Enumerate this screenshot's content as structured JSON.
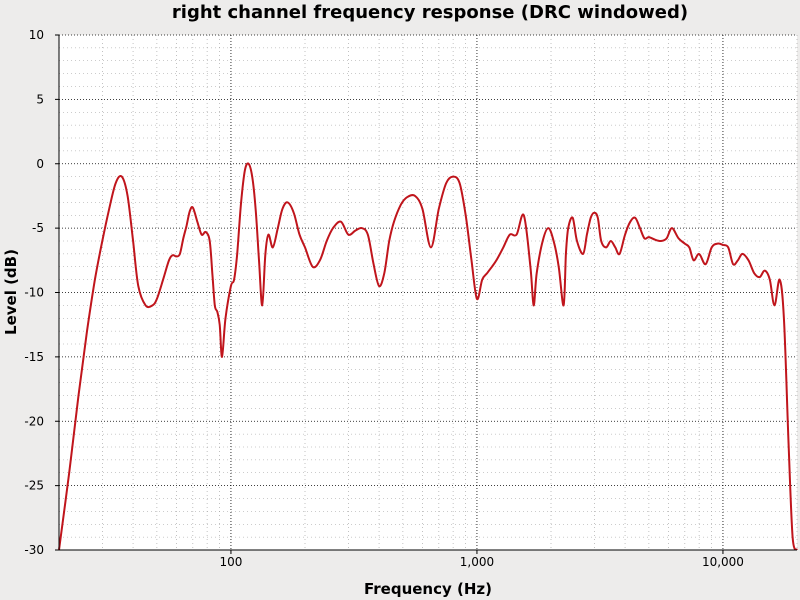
{
  "chart_data": {
    "type": "line",
    "title": "right channel frequency response (DRC windowed)",
    "xlabel": "Frequency (Hz)",
    "ylabel": "Level (dB)",
    "xscale": "log",
    "xlim": [
      20,
      20000
    ],
    "ylim": [
      -30,
      10
    ],
    "grid": true,
    "x_tick_labels": [
      {
        "value": 100,
        "label": "100"
      },
      {
        "value": 1000,
        "label": "1,000"
      },
      {
        "value": 10000,
        "label": "10,000"
      }
    ],
    "y_ticks": [
      10,
      5,
      0,
      -5,
      -10,
      -15,
      -20,
      -25,
      -30
    ],
    "series": [
      {
        "color": "#c0151c",
        "x": [
          20,
          22,
          24,
          26,
          28,
          30,
          32,
          34,
          36,
          38,
          40,
          42,
          45,
          48,
          50,
          53,
          56,
          58,
          60,
          62,
          64,
          66,
          68,
          70,
          73,
          76,
          79,
          82,
          84,
          86,
          88,
          90,
          92,
          95,
          100,
          103,
          106,
          110,
          114,
          118,
          122,
          126,
          130,
          134,
          138,
          142,
          148,
          155,
          162,
          170,
          180,
          190,
          200,
          215,
          230,
          245,
          260,
          280,
          300,
          320,
          340,
          360,
          380,
          400,
          420,
          440,
          460,
          490,
          520,
          560,
          600,
          650,
          700,
          750,
          800,
          850,
          900,
          950,
          1000,
          1050,
          1100,
          1150,
          1200,
          1280,
          1360,
          1450,
          1550,
          1650,
          1700,
          1750,
          1850,
          1950,
          2050,
          2150,
          2250,
          2300,
          2350,
          2450,
          2550,
          2700,
          2800,
          2900,
          3000,
          3100,
          3200,
          3350,
          3500,
          3650,
          3800,
          4000,
          4200,
          4400,
          4600,
          4800,
          5000,
          5300,
          5600,
          5900,
          6200,
          6600,
          7000,
          7300,
          7600,
          8000,
          8500,
          9000,
          9500,
          10000,
          10500,
          11000,
          11500,
          12000,
          12700,
          13400,
          14100,
          14800,
          15500,
          16200,
          17000,
          17700,
          18500,
          19200,
          20000
        ],
        "y": [
          -30,
          -24,
          -18,
          -13,
          -9,
          -6,
          -3.5,
          -1.5,
          -1,
          -2.5,
          -6,
          -9.5,
          -11,
          -11,
          -10.5,
          -9,
          -7.5,
          -7.1,
          -7.2,
          -7,
          -5.8,
          -4.8,
          -3.7,
          -3.4,
          -4.5,
          -5.5,
          -5.3,
          -6,
          -8.5,
          -11,
          -11.5,
          -12.5,
          -15,
          -12,
          -9.5,
          -9,
          -7,
          -3,
          -0.5,
          0,
          -1,
          -3.5,
          -7.5,
          -11,
          -7,
          -5.5,
          -6.5,
          -5,
          -3.5,
          -3,
          -3.8,
          -5.5,
          -6.5,
          -8,
          -7.5,
          -6,
          -5,
          -4.5,
          -5.5,
          -5.2,
          -5,
          -5.5,
          -7.8,
          -9.5,
          -8.5,
          -6,
          -4.5,
          -3.2,
          -2.6,
          -2.5,
          -3.5,
          -6.5,
          -3.5,
          -1.5,
          -1,
          -1.5,
          -4,
          -7.5,
          -10.5,
          -9,
          -8.5,
          -8,
          -7.5,
          -6.5,
          -5.5,
          -5.5,
          -4,
          -8,
          -11,
          -8.5,
          -6,
          -5,
          -6,
          -8,
          -11,
          -7,
          -5,
          -4.2,
          -6,
          -7,
          -5.5,
          -4.2,
          -3.8,
          -4.2,
          -6,
          -6.5,
          -6,
          -6.5,
          -7,
          -5.5,
          -4.5,
          -4.2,
          -5,
          -5.8,
          -5.7,
          -5.9,
          -6,
          -5.8,
          -5,
          -5.8,
          -6.2,
          -6.5,
          -7.5,
          -7,
          -7.8,
          -6.5,
          -6.2,
          -6.3,
          -6.5,
          -7.8,
          -7.5,
          -7,
          -7.5,
          -8.5,
          -8.8,
          -8.3,
          -9,
          -11,
          -9,
          -12,
          -22,
          -29,
          -30
        ]
      }
    ]
  }
}
